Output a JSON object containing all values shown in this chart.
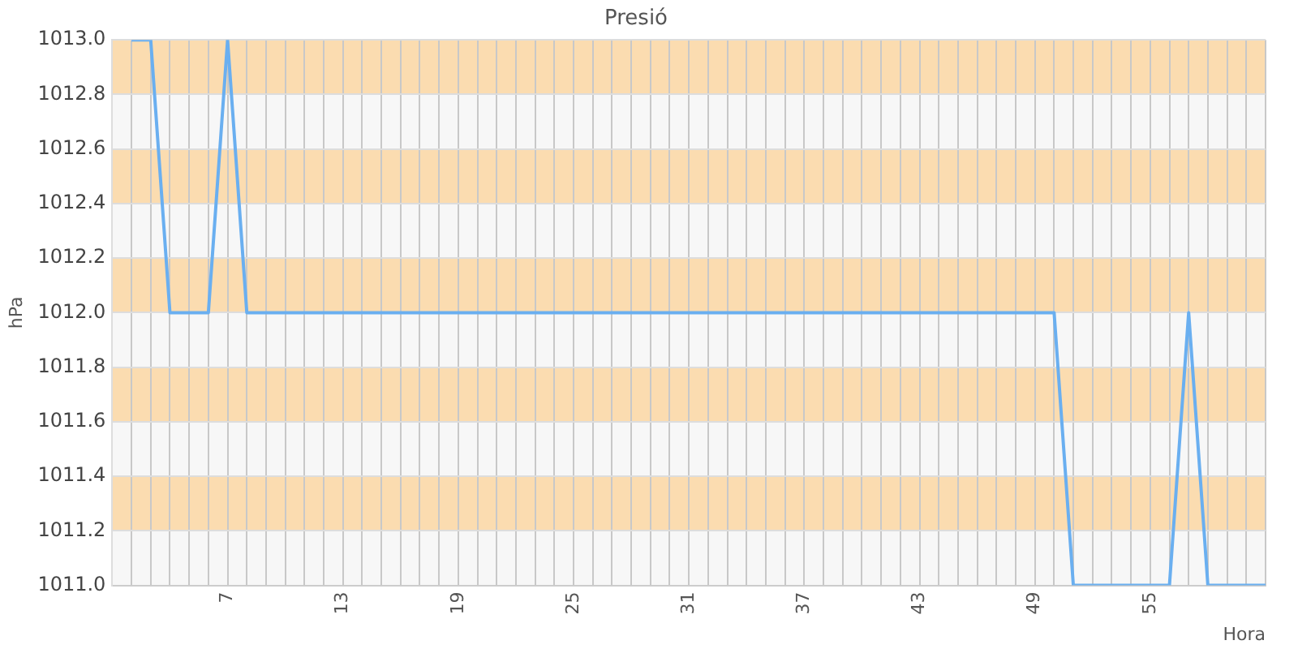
{
  "chart_data": {
    "type": "line",
    "title": "Presió",
    "xlabel": "Hora",
    "ylabel": "hPa",
    "categories": [
      null,
      null,
      null,
      null,
      null,
      null,
      "7",
      null,
      null,
      null,
      null,
      null,
      "13",
      null,
      null,
      null,
      null,
      null,
      "19",
      null,
      null,
      null,
      null,
      null,
      "25",
      null,
      null,
      null,
      null,
      null,
      "31",
      null,
      null,
      null,
      null,
      null,
      "37",
      null,
      null,
      null,
      null,
      null,
      "43",
      null,
      null,
      null,
      null,
      null,
      "49",
      null,
      null,
      null,
      null,
      null,
      "55",
      null,
      null,
      null,
      null,
      null,
      null
    ],
    "values": [
      null,
      1013.0,
      1013.0,
      1012.0,
      1012.0,
      1012.0,
      1013.0,
      1012.0,
      1012.0,
      1012.0,
      1012.0,
      1012.0,
      1012.0,
      1012.0,
      1012.0,
      1012.0,
      1012.0,
      1012.0,
      1012.0,
      1012.0,
      1012.0,
      1012.0,
      1012.0,
      1012.0,
      1012.0,
      1012.0,
      1012.0,
      1012.0,
      1012.0,
      1012.0,
      1012.0,
      1012.0,
      1012.0,
      1012.0,
      1012.0,
      1012.0,
      1012.0,
      1012.0,
      1012.0,
      1012.0,
      1012.0,
      1012.0,
      1012.0,
      1012.0,
      1012.0,
      1012.0,
      1012.0,
      1012.0,
      1012.0,
      1012.0,
      1011.0,
      1011.0,
      1011.0,
      1011.0,
      1011.0,
      1011.0,
      1012.0,
      1011.0,
      1011.0,
      1011.0,
      1011.0
    ],
    "color": "#6aaff0",
    "ylim": [
      1011.0,
      1013.0
    ],
    "yticks": [
      {
        "value": 1011,
        "label": "1011.0"
      },
      1011.2,
      1011.4,
      1011.6,
      1011.8,
      {
        "value": 1012,
        "label": "1012.0"
      },
      1012.2,
      1012.4,
      1012.6,
      1012.8,
      {
        "value": 1013,
        "label": "1013.0"
      }
    ],
    "grid": true,
    "bands": [
      {
        "axis": "y",
        "from": 1011.2,
        "to": 1011.4,
        "color": "#fbdcb0"
      },
      {
        "axis": "y",
        "from": 1011.6,
        "to": 1011.8,
        "color": "#fbdcb0"
      },
      {
        "axis": "y",
        "from": 1012.0,
        "to": 1012.2,
        "color": "#fbdcb0"
      },
      {
        "axis": "y",
        "from": 1012.4,
        "to": 1012.6,
        "color": "#fbdcb0"
      },
      {
        "axis": "y",
        "from": 1012.8,
        "to": 1013.0,
        "color": "#fbdcb0"
      }
    ]
  }
}
